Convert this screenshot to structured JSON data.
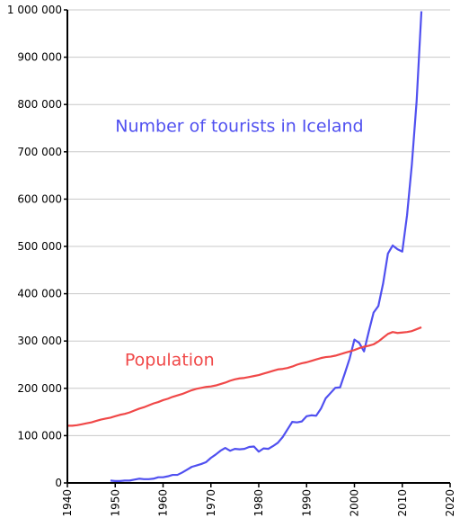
{
  "chart_data": {
    "type": "line",
    "x_range": [
      1940,
      2020
    ],
    "y_range": [
      0,
      1000000
    ],
    "x_ticks": [
      1940,
      1950,
      1960,
      1970,
      1980,
      1990,
      2000,
      2010,
      2020
    ],
    "y_ticks": [
      0,
      100000,
      200000,
      300000,
      400000,
      500000,
      600000,
      700000,
      800000,
      900000,
      1000000
    ],
    "x_tick_labels": [
      "1940",
      "1950",
      "1960",
      "1970",
      "1980",
      "1990",
      "2000",
      "2010",
      "2020"
    ],
    "y_tick_labels": [
      "0",
      "100 000",
      "200 000",
      "300 000",
      "400 000",
      "500 000",
      "600 000",
      "700 000",
      "800 000",
      "900 000",
      "1 000 000"
    ],
    "grid": "horizontal",
    "series": [
      {
        "name": "Number of tourists in Iceland",
        "color": "#5050f0",
        "points": [
          [
            1949,
            5000
          ],
          [
            1950,
            4000
          ],
          [
            1951,
            4000
          ],
          [
            1952,
            5000
          ],
          [
            1953,
            5000
          ],
          [
            1954,
            7000
          ],
          [
            1955,
            9000
          ],
          [
            1956,
            8000
          ],
          [
            1957,
            8000
          ],
          [
            1958,
            9000
          ],
          [
            1959,
            12000
          ],
          [
            1960,
            12000
          ],
          [
            1961,
            14000
          ],
          [
            1962,
            17000
          ],
          [
            1963,
            17000
          ],
          [
            1964,
            22000
          ],
          [
            1965,
            28000
          ],
          [
            1966,
            34000
          ],
          [
            1967,
            37000
          ],
          [
            1968,
            40000
          ],
          [
            1969,
            44000
          ],
          [
            1970,
            53000
          ],
          [
            1971,
            60000
          ],
          [
            1972,
            68000
          ],
          [
            1973,
            74000
          ],
          [
            1974,
            68000
          ],
          [
            1975,
            72000
          ],
          [
            1976,
            71000
          ],
          [
            1977,
            72000
          ],
          [
            1978,
            76000
          ],
          [
            1979,
            77000
          ],
          [
            1980,
            66000
          ],
          [
            1981,
            73000
          ],
          [
            1982,
            72000
          ],
          [
            1983,
            78000
          ],
          [
            1984,
            85000
          ],
          [
            1985,
            97000
          ],
          [
            1986,
            113000
          ],
          [
            1987,
            129000
          ],
          [
            1988,
            128000
          ],
          [
            1989,
            130000
          ],
          [
            1990,
            141000
          ],
          [
            1991,
            143000
          ],
          [
            1992,
            142000
          ],
          [
            1993,
            157000
          ],
          [
            1994,
            179000
          ],
          [
            1995,
            190000
          ],
          [
            1996,
            201000
          ],
          [
            1997,
            202000
          ],
          [
            1998,
            232000
          ],
          [
            1999,
            263000
          ],
          [
            2000,
            303000
          ],
          [
            2001,
            296000
          ],
          [
            2002,
            278000
          ],
          [
            2003,
            320000
          ],
          [
            2004,
            360000
          ],
          [
            2005,
            374000
          ],
          [
            2006,
            422000
          ],
          [
            2007,
            485000
          ],
          [
            2008,
            502000
          ],
          [
            2009,
            494000
          ],
          [
            2010,
            489000
          ],
          [
            2011,
            566000
          ],
          [
            2012,
            673000
          ],
          [
            2013,
            807000
          ],
          [
            2014,
            997000
          ]
        ]
      },
      {
        "name": "Population",
        "color": "#f04848",
        "points": [
          [
            1940,
            121000
          ],
          [
            1941,
            121000
          ],
          [
            1942,
            122000
          ],
          [
            1943,
            124000
          ],
          [
            1944,
            126000
          ],
          [
            1945,
            128000
          ],
          [
            1946,
            131000
          ],
          [
            1947,
            134000
          ],
          [
            1948,
            136000
          ],
          [
            1949,
            138000
          ],
          [
            1950,
            141000
          ],
          [
            1951,
            144000
          ],
          [
            1952,
            146000
          ],
          [
            1953,
            149000
          ],
          [
            1954,
            153000
          ],
          [
            1955,
            157000
          ],
          [
            1956,
            160000
          ],
          [
            1957,
            164000
          ],
          [
            1958,
            168000
          ],
          [
            1959,
            171000
          ],
          [
            1960,
            175000
          ],
          [
            1961,
            178000
          ],
          [
            1962,
            182000
          ],
          [
            1963,
            185000
          ],
          [
            1964,
            188000
          ],
          [
            1965,
            192000
          ],
          [
            1966,
            196000
          ],
          [
            1967,
            199000
          ],
          [
            1968,
            201000
          ],
          [
            1969,
            203000
          ],
          [
            1970,
            204000
          ],
          [
            1971,
            206000
          ],
          [
            1972,
            209000
          ],
          [
            1973,
            212000
          ],
          [
            1974,
            216000
          ],
          [
            1975,
            219000
          ],
          [
            1976,
            221000
          ],
          [
            1977,
            222000
          ],
          [
            1978,
            224000
          ],
          [
            1979,
            226000
          ],
          [
            1980,
            228000
          ],
          [
            1981,
            231000
          ],
          [
            1982,
            234000
          ],
          [
            1983,
            237000
          ],
          [
            1984,
            240000
          ],
          [
            1985,
            241000
          ],
          [
            1986,
            243000
          ],
          [
            1987,
            246000
          ],
          [
            1988,
            250000
          ],
          [
            1989,
            253000
          ],
          [
            1990,
            255000
          ],
          [
            1991,
            258000
          ],
          [
            1992,
            261000
          ],
          [
            1993,
            264000
          ],
          [
            1994,
            266000
          ],
          [
            1995,
            267000
          ],
          [
            1996,
            269000
          ],
          [
            1997,
            272000
          ],
          [
            1998,
            275000
          ],
          [
            1999,
            278000
          ],
          [
            2000,
            281000
          ],
          [
            2001,
            285000
          ],
          [
            2002,
            288000
          ],
          [
            2003,
            290000
          ],
          [
            2004,
            293000
          ],
          [
            2005,
            299000
          ],
          [
            2006,
            307000
          ],
          [
            2007,
            315000
          ],
          [
            2008,
            319000
          ],
          [
            2009,
            317000
          ],
          [
            2010,
            318000
          ],
          [
            2011,
            319000
          ],
          [
            2012,
            321000
          ],
          [
            2013,
            325000
          ],
          [
            2014,
            329000
          ]
        ]
      }
    ],
    "annotations": [
      {
        "text": "Number of tourists in Iceland",
        "at": [
          1950,
          742000
        ],
        "color": "#5050f0"
      },
      {
        "text": "Population",
        "at": [
          1952,
          248000
        ],
        "color": "#f04848"
      }
    ]
  }
}
